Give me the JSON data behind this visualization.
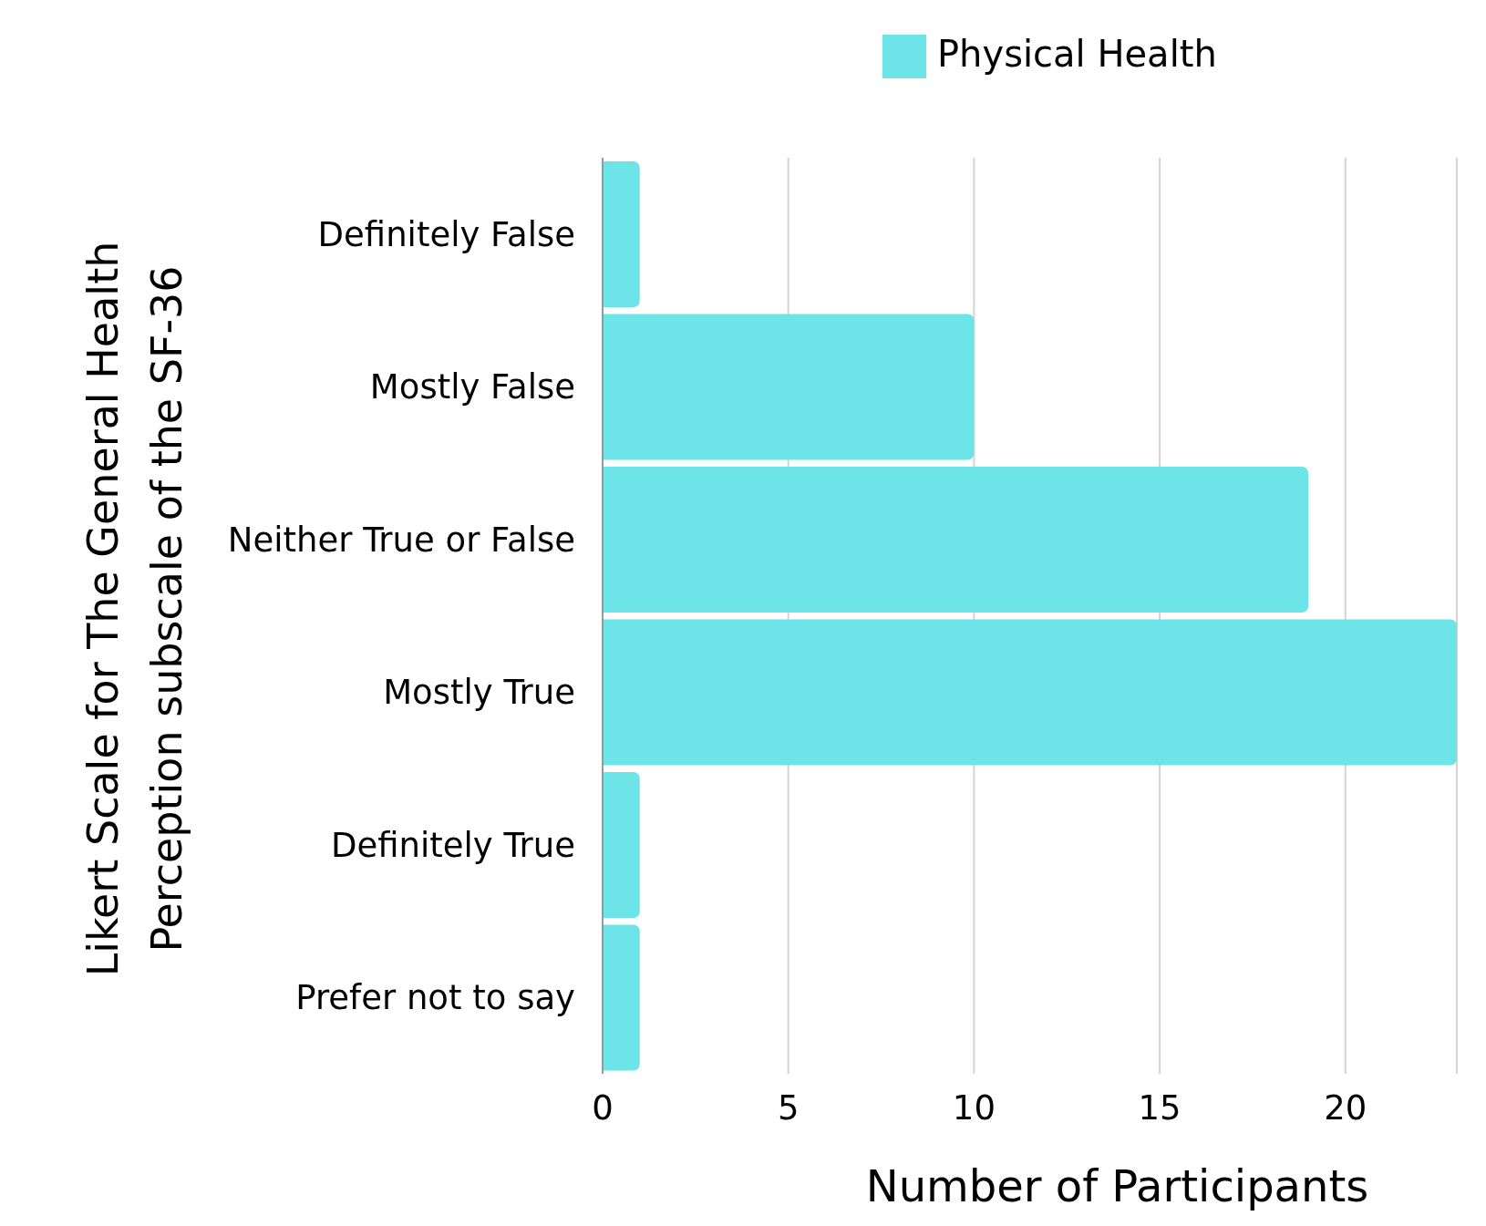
{
  "chart_data": {
    "type": "bar",
    "orientation": "horizontal",
    "xlabel": "Number of Participants",
    "ylabel": "Likert Scale for The General Health Perception subscale of the SF-36",
    "categories": [
      "Definitely False",
      "Mostly False",
      "Neither True or False",
      "Mostly True",
      "Definitely True",
      "Prefer not to say"
    ],
    "series": [
      {
        "name": "Physical Health",
        "color": "#6ce4e8",
        "values": [
          1,
          10,
          19,
          23,
          1,
          1
        ]
      }
    ],
    "xlim": [
      0,
      23
    ],
    "xticks": [
      0,
      5,
      10,
      15,
      20
    ],
    "grid": "x",
    "legend": "top"
  }
}
